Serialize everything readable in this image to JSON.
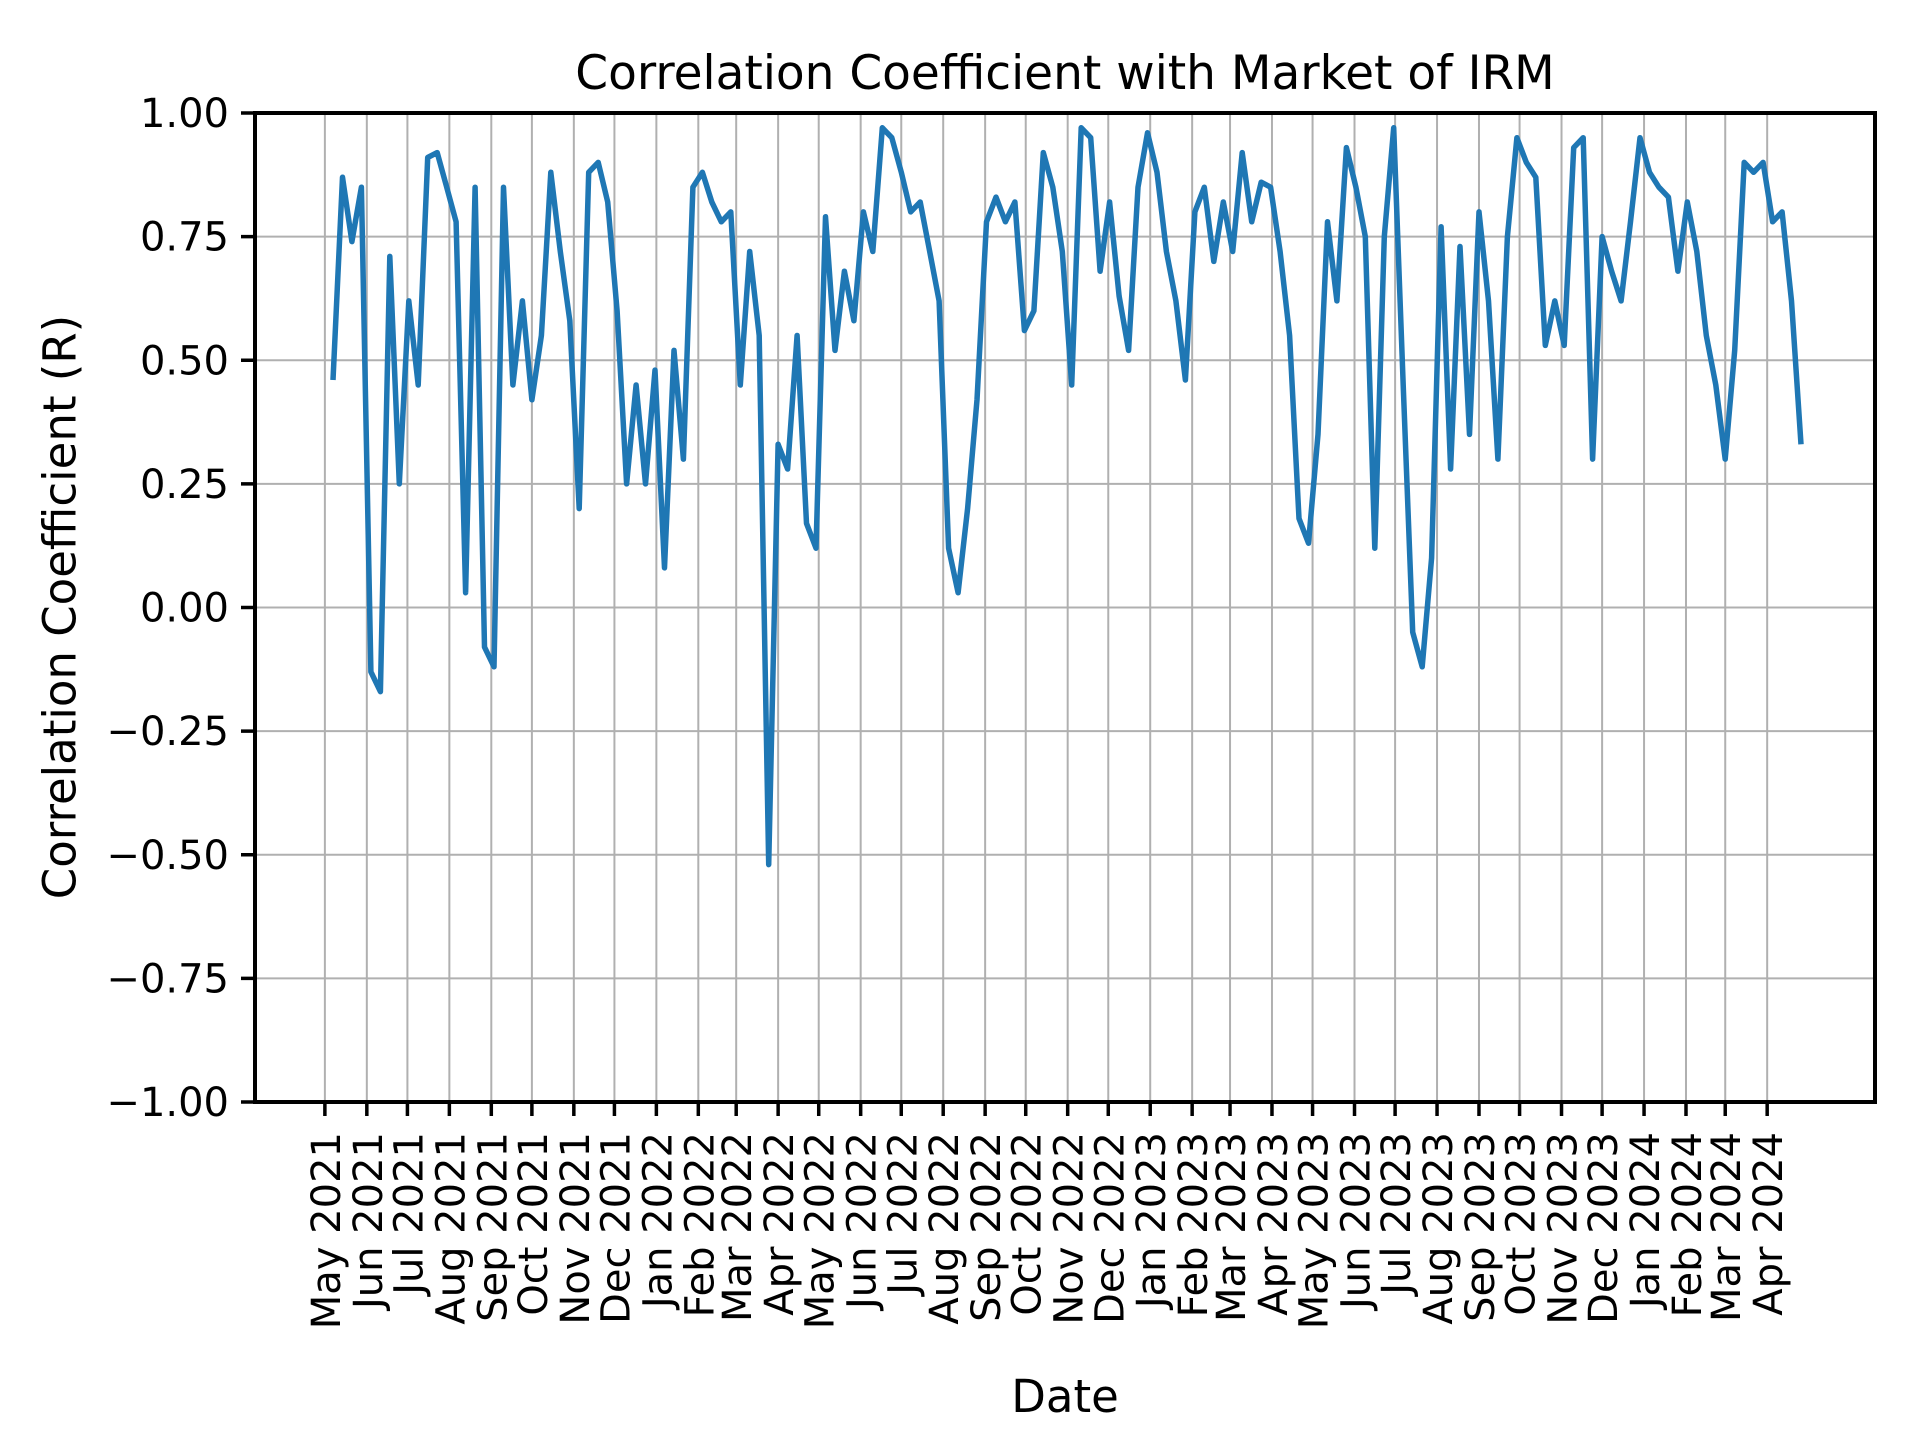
{
  "title": "Correlation Coefficient with Market of IRM",
  "axes": {
    "x_label": "Date",
    "y_label": "Correlation Coefficient (R)"
  },
  "chart_data": {
    "type": "line",
    "title": "Correlation Coefficient with Market of IRM",
    "xlabel": "Date",
    "ylabel": "Correlation Coefficient (R)",
    "ylim": [
      -1.0,
      1.0
    ],
    "grid": true,
    "legend": "none",
    "line_color": "#1f77b4",
    "grid_color": "#b0b0b0",
    "spine_color": "#000000",
    "x_start_date": "2021-05-07",
    "x_end_date": "2024-04-26",
    "x_step_days": 7,
    "x_tick_labels": [
      "May 2021",
      "Jun 2021",
      "Jul 2021",
      "Aug 2021",
      "Sep 2021",
      "Oct 2021",
      "Nov 2021",
      "Dec 2021",
      "Jan 2022",
      "Feb 2022",
      "Mar 2022",
      "Apr 2022",
      "May 2022",
      "Jun 2022",
      "Jul 2022",
      "Aug 2022",
      "Sep 2022",
      "Oct 2022",
      "Nov 2022",
      "Dec 2022",
      "Jan 2023",
      "Feb 2023",
      "Mar 2023",
      "Apr 2023",
      "May 2023",
      "Jun 2023",
      "Jul 2023",
      "Aug 2023",
      "Sep 2023",
      "Oct 2023",
      "Nov 2023",
      "Dec 2023",
      "Jan 2024",
      "Feb 2024",
      "Mar 2024",
      "Apr 2024"
    ],
    "y_ticks": [
      1.0,
      0.75,
      0.5,
      0.25,
      0.0,
      -0.25,
      -0.5,
      -0.75,
      -1.0
    ],
    "y_tick_labels": [
      "1.00",
      "0.75",
      "0.50",
      "0.25",
      "0.00",
      "−0.25",
      "−0.50",
      "−0.75",
      "−1.00"
    ],
    "values": [
      0.46,
      0.87,
      0.74,
      0.85,
      -0.13,
      -0.17,
      0.71,
      0.25,
      0.62,
      0.45,
      0.91,
      0.92,
      0.85,
      0.78,
      0.03,
      0.85,
      -0.08,
      -0.12,
      0.85,
      0.45,
      0.62,
      0.42,
      0.55,
      0.88,
      0.72,
      0.58,
      0.2,
      0.88,
      0.9,
      0.82,
      0.6,
      0.25,
      0.45,
      0.25,
      0.48,
      0.08,
      0.52,
      0.3,
      0.85,
      0.88,
      0.82,
      0.78,
      0.8,
      0.45,
      0.72,
      0.55,
      -0.52,
      0.33,
      0.28,
      0.55,
      0.17,
      0.12,
      0.79,
      0.52,
      0.68,
      0.58,
      0.8,
      0.72,
      0.97,
      0.95,
      0.88,
      0.8,
      0.82,
      0.72,
      0.62,
      0.12,
      0.03,
      0.2,
      0.42,
      0.78,
      0.83,
      0.78,
      0.82,
      0.56,
      0.6,
      0.92,
      0.85,
      0.72,
      0.45,
      0.97,
      0.95,
      0.68,
      0.82,
      0.63,
      0.52,
      0.85,
      0.96,
      0.88,
      0.72,
      0.62,
      0.46,
      0.8,
      0.85,
      0.7,
      0.82,
      0.72,
      0.92,
      0.78,
      0.86,
      0.85,
      0.72,
      0.55,
      0.18,
      0.13,
      0.35,
      0.78,
      0.62,
      0.93,
      0.85,
      0.75,
      0.12,
      0.75,
      0.97,
      0.45,
      -0.05,
      -0.12,
      0.1,
      0.77,
      0.28,
      0.73,
      0.35,
      0.8,
      0.62,
      0.3,
      0.75,
      0.95,
      0.9,
      0.87,
      0.53,
      0.62,
      0.53,
      0.93,
      0.95,
      0.3,
      0.75,
      0.68,
      0.62,
      0.78,
      0.95,
      0.88,
      0.85,
      0.83,
      0.68,
      0.82,
      0.72,
      0.55,
      0.45,
      0.3,
      0.52,
      0.9,
      0.88,
      0.9,
      0.78,
      0.8,
      0.62,
      0.33
    ]
  }
}
